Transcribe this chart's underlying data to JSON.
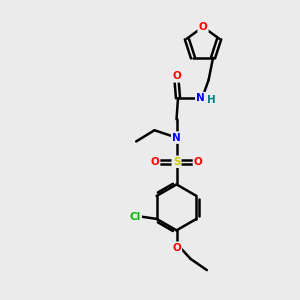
{
  "background_color": "#ebebeb",
  "bond_color": "#000000",
  "atom_colors": {
    "O": "#ff0000",
    "N": "#0000ff",
    "S": "#cccc00",
    "Cl": "#00bb00",
    "H": "#008080",
    "C": "#000000"
  },
  "figsize": [
    3.0,
    3.0
  ],
  "dpi": 100,
  "lw": 1.8,
  "fontsize": 7.5
}
